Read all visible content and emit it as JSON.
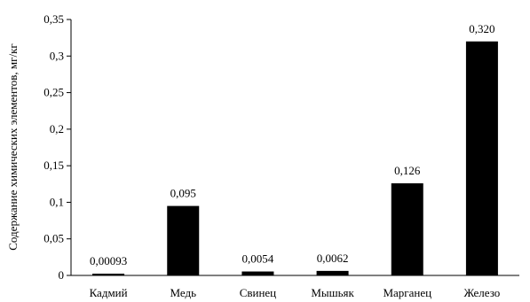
{
  "chart_data": {
    "type": "bar",
    "title": "",
    "xlabel": "",
    "ylabel": "Содержание химических элементов, мг/кг",
    "categories": [
      "Кадмий",
      "Медь",
      "Свинец",
      "Мышьяк",
      "Марганец",
      "Железо"
    ],
    "values": [
      0.00093,
      0.095,
      0.0054,
      0.0062,
      0.126,
      0.32
    ],
    "data_labels": [
      "0,00093",
      "0,095",
      "0,0054",
      "0,0062",
      "0,126",
      "0,320"
    ],
    "ylim": [
      0,
      0.35
    ],
    "yticks": [
      0,
      0.05,
      0.1,
      0.15,
      0.2,
      0.25,
      0.3,
      0.35
    ],
    "ytick_labels": [
      "0",
      "0,05",
      "0,1",
      "0,15",
      "0,2",
      "0,25",
      "0,3",
      "0,35"
    ],
    "grid": false,
    "legend": "none",
    "bar_color": "#000000"
  }
}
